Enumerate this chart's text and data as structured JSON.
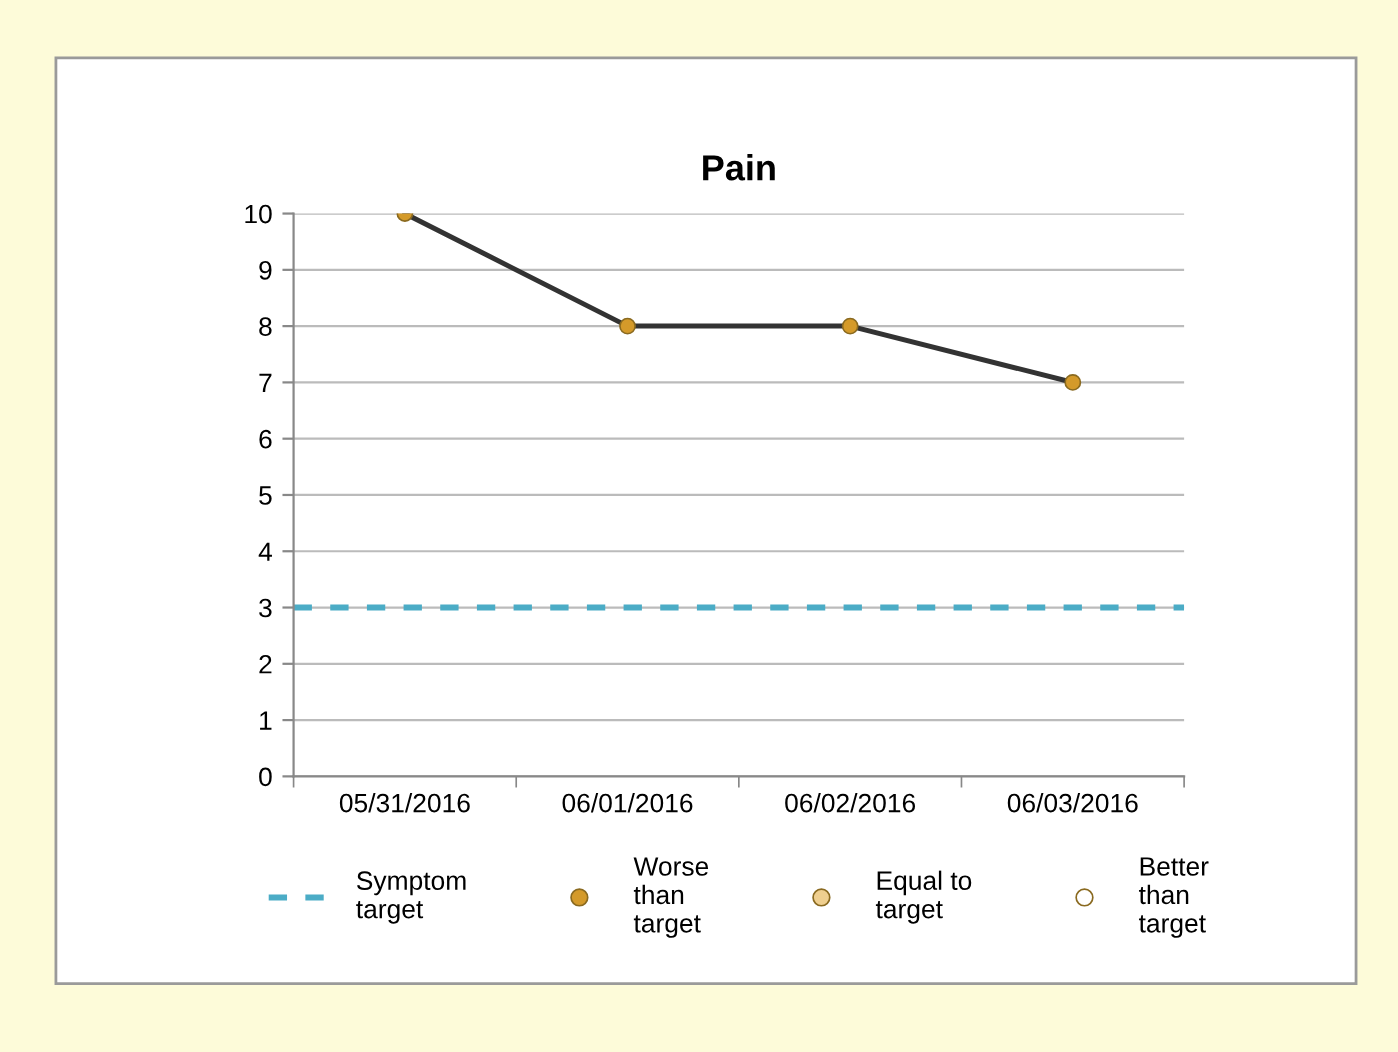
{
  "chart_data": {
    "type": "line",
    "title": "Pain",
    "categories": [
      "05/31/2016",
      "06/01/2016",
      "06/02/2016",
      "06/03/2016"
    ],
    "series": [
      {
        "color": "#333333",
        "values": [
          10,
          8,
          8,
          7
        ]
      },
      {
        "type": "scatter",
        "name": "Worse than target",
        "color": "#d49a2a",
        "values": [
          10,
          8,
          8,
          7
        ]
      },
      {
        "type": "scatter",
        "name": "Equal to target",
        "color": "#efcf8f",
        "values": [
          null,
          null,
          null,
          null
        ]
      },
      {
        "type": "scatter",
        "name": "Better than target",
        "color": "#ffffff",
        "values": [
          null,
          null,
          null,
          null
        ]
      }
    ],
    "ref_lines": [
      {
        "axis": "y",
        "value": 3,
        "label": "Symptom target",
        "color": "#4bacc6",
        "line_style": "dashed"
      }
    ],
    "ylim": [
      0,
      10
    ],
    "yticks": [
      0,
      1,
      2,
      3,
      4,
      5,
      6,
      7,
      8,
      9,
      10
    ],
    "grid": "y",
    "legend": "bottom"
  }
}
